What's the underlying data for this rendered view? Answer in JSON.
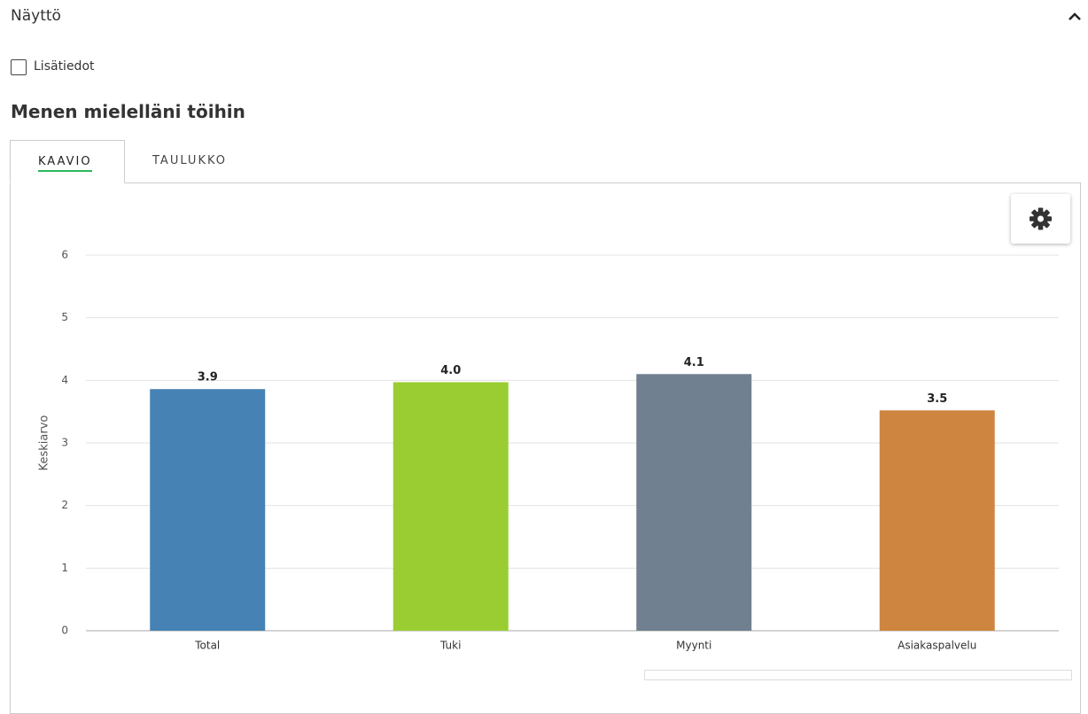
{
  "header": {
    "title": "Näyttö"
  },
  "checkbox": {
    "label": "Lisätiedot"
  },
  "section_title": "Menen mielelläni töihin",
  "tabs": [
    "KAAVIO",
    "TAULUKKO"
  ],
  "chart_data": {
    "type": "bar",
    "y_label": "Keskiarvo",
    "categories": [
      "Total",
      "Tuki",
      "Myynti",
      "Asiakaspalvelu"
    ],
    "values": [
      3.86,
      3.97,
      4.1,
      3.52
    ],
    "value_labels": [
      "3.9",
      "4.0",
      "4.1",
      "3.5"
    ],
    "colors": [
      "#4682b4",
      "#9acd32",
      "#708090",
      "#cd853f"
    ],
    "ylim": [
      0,
      6
    ],
    "yticks": [
      0,
      1,
      2,
      3,
      4,
      5,
      6
    ],
    "grid": true
  }
}
